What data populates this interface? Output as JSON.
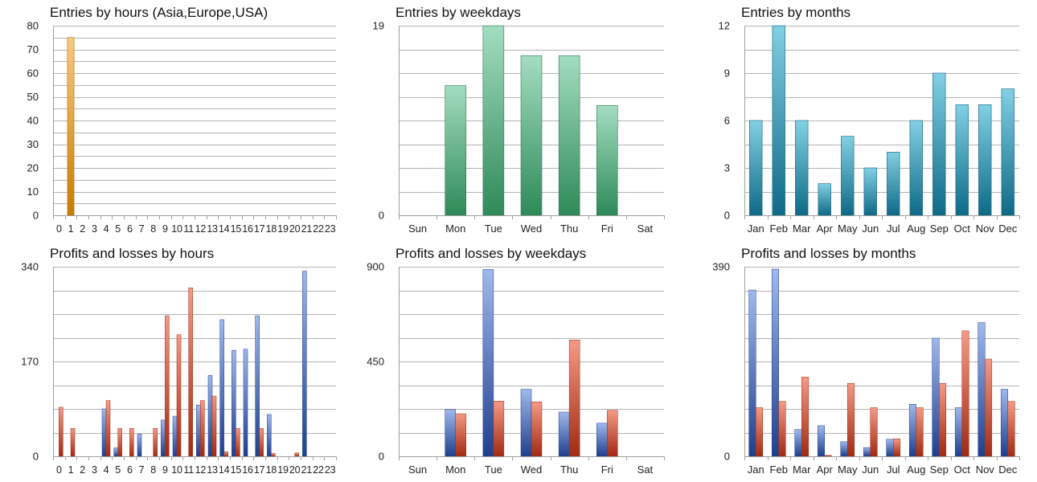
{
  "chart_data": [
    {
      "id": "entries_hours",
      "type": "bar",
      "title": "Entries by hours (Asia,Europe,USA)",
      "categories": [
        "0",
        "1",
        "2",
        "3",
        "4",
        "5",
        "6",
        "7",
        "8",
        "9",
        "10",
        "11",
        "12",
        "13",
        "14",
        "15",
        "16",
        "17",
        "18",
        "19",
        "20",
        "21",
        "22",
        "23"
      ],
      "values": [
        0,
        75,
        0,
        0,
        0,
        0,
        0,
        0,
        0,
        0,
        0,
        0,
        0,
        0,
        0,
        0,
        0,
        0,
        0,
        0,
        0,
        0,
        0,
        0
      ],
      "ylim": [
        0,
        80
      ],
      "yticks": [
        0,
        10,
        20,
        30,
        40,
        50,
        60,
        70,
        80
      ],
      "grid_values": [
        0,
        5,
        10,
        15,
        20,
        25,
        30,
        35,
        40,
        45,
        50,
        55,
        60,
        65,
        70,
        75,
        80
      ],
      "colors": {
        "top": "#f8cb80",
        "bottom": "#c87a00",
        "stroke": "#b06a00"
      }
    },
    {
      "id": "entries_weekdays",
      "type": "bar",
      "title": "Entries by weekdays",
      "categories": [
        "Sun",
        "Mon",
        "Tue",
        "Wed",
        "Thu",
        "Fri",
        "Sat"
      ],
      "values": [
        0,
        13,
        19,
        16,
        16,
        11,
        0
      ],
      "ylim": [
        0,
        19
      ],
      "yticks": [
        0,
        19
      ],
      "grid_values": [
        0,
        2.375,
        4.75,
        7.125,
        9.5,
        11.875,
        14.25,
        16.625,
        19
      ],
      "colors": {
        "top": "#a3ddc0",
        "bottom": "#2e8a58",
        "stroke": "#2a7a50"
      }
    },
    {
      "id": "entries_months",
      "type": "bar",
      "title": "Entries by months",
      "categories": [
        "Jan",
        "Feb",
        "Mar",
        "Apr",
        "May",
        "Jun",
        "Jul",
        "Aug",
        "Sep",
        "Oct",
        "Nov",
        "Dec"
      ],
      "values": [
        6,
        12,
        6,
        2,
        5,
        3,
        4,
        6,
        9,
        7,
        7,
        8
      ],
      "ylim": [
        0,
        12
      ],
      "yticks": [
        0,
        3,
        6,
        9,
        12
      ],
      "grid_values": [
        0,
        1.5,
        3,
        4.5,
        6,
        7.5,
        9,
        10.5,
        12
      ],
      "colors": {
        "top": "#82d0e4",
        "bottom": "#0e6a86",
        "stroke": "#0c5f78"
      }
    },
    {
      "id": "pl_hours",
      "type": "bar",
      "title": "Profits and losses by hours",
      "categories": [
        "0",
        "1",
        "2",
        "3",
        "4",
        "5",
        "6",
        "7",
        "8",
        "9",
        "10",
        "11",
        "12",
        "13",
        "14",
        "15",
        "16",
        "17",
        "18",
        "19",
        "20",
        "21",
        "22",
        "23"
      ],
      "series": [
        {
          "values": [
            0,
            0,
            0,
            0,
            85,
            15,
            0,
            40,
            0,
            65,
            72,
            0,
            92,
            145,
            245,
            190,
            192,
            252,
            75,
            0,
            0,
            332,
            0,
            0
          ]
        },
        {
          "values": [
            88,
            50,
            0,
            0,
            100,
            50,
            50,
            0,
            50,
            252,
            218,
            302,
            100,
            108,
            8,
            50,
            0,
            50,
            5,
            0,
            6,
            0,
            0,
            0
          ]
        }
      ],
      "ylim": [
        0,
        340
      ],
      "yticks": [
        0,
        170,
        340
      ],
      "grid_values": [
        0,
        42.5,
        85,
        127.5,
        170,
        212.5,
        255,
        297.5,
        340
      ],
      "colors": {
        "blue_top": "#9fb8ec",
        "blue_bottom": "#1f3f8e",
        "red_top": "#f39a86",
        "red_bottom": "#a12a12"
      }
    },
    {
      "id": "pl_weekdays",
      "type": "bar",
      "title": "Profits and losses by weekdays",
      "categories": [
        "Sun",
        "Mon",
        "Tue",
        "Wed",
        "Thu",
        "Fri",
        "Sat"
      ],
      "series": [
        {
          "values": [
            0,
            222,
            887,
            318,
            210,
            157,
            0
          ]
        },
        {
          "values": [
            0,
            202,
            262,
            258,
            552,
            218,
            0
          ]
        }
      ],
      "ylim": [
        0,
        900
      ],
      "yticks": [
        0,
        450,
        900
      ],
      "grid_values": [
        0,
        112.5,
        225,
        337.5,
        450,
        562.5,
        675,
        787.5,
        900
      ],
      "colors": {
        "blue_top": "#9fb8ec",
        "blue_bottom": "#1f3f8e",
        "red_top": "#f39a86",
        "red_bottom": "#a12a12"
      }
    },
    {
      "id": "pl_months",
      "type": "bar",
      "title": "Profits and losses by months",
      "categories": [
        "Jan",
        "Feb",
        "Mar",
        "Apr",
        "May",
        "Jun",
        "Jul",
        "Aug",
        "Sep",
        "Oct",
        "Nov",
        "Dec"
      ],
      "series": [
        {
          "values": [
            342,
            385,
            55,
            63,
            30,
            18,
            35,
            107,
            243,
            100,
            275,
            138
          ]
        },
        {
          "values": [
            100,
            113,
            163,
            2,
            150,
            100,
            36,
            100,
            150,
            258,
            200,
            113
          ]
        }
      ],
      "ylim": [
        0,
        390
      ],
      "yticks": [
        0,
        390
      ],
      "grid_values": [
        0,
        48.75,
        97.5,
        146.25,
        195,
        243.75,
        292.5,
        341.25,
        390
      ],
      "colors": {
        "blue_top": "#9fb8ec",
        "blue_bottom": "#1f3f8e",
        "red_top": "#f39a86",
        "red_bottom": "#a12a12"
      }
    }
  ]
}
